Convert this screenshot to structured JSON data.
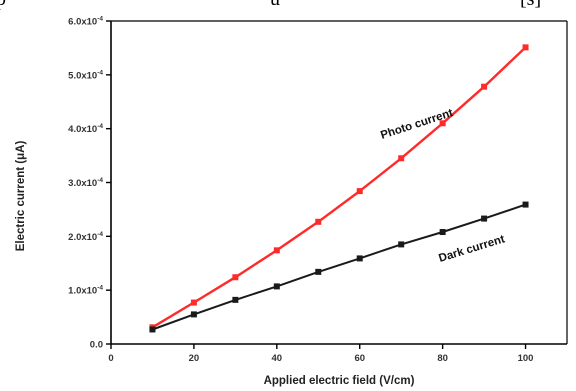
{
  "caption_fragment": {
    "left_text": "p",
    "middle_text": "u",
    "right_text": "[s]"
  },
  "chart_data": {
    "type": "line",
    "title": "",
    "xlabel": "Applied electric field (V/cm)",
    "ylabel": "Electric current (μA)",
    "xlim": [
      0,
      110
    ],
    "ylim": [
      0,
      0.0006
    ],
    "x_ticks": [
      0,
      20,
      40,
      60,
      80,
      100
    ],
    "x_tick_labels": [
      "0",
      "20",
      "40",
      "60",
      "80",
      "100"
    ],
    "y_ticks": [
      0,
      0.0001,
      0.0002,
      0.0003,
      0.0004,
      0.0005,
      0.0006
    ],
    "y_tick_labels": [
      {
        "mantissa": "0.0",
        "exp": ""
      },
      {
        "mantissa": "1.0x10",
        "exp": "-4"
      },
      {
        "mantissa": "2.0x10",
        "exp": "-4"
      },
      {
        "mantissa": "3.0x10",
        "exp": "-4"
      },
      {
        "mantissa": "4.0x10",
        "exp": "-4"
      },
      {
        "mantissa": "5.0x10",
        "exp": "-4"
      },
      {
        "mantissa": "6.0x10",
        "exp": "-4"
      }
    ],
    "grid": false,
    "legend": "none (inline labels)",
    "series": [
      {
        "name": "Photo current",
        "color": "#ff2a2a",
        "x": [
          10,
          20,
          30,
          40,
          50,
          60,
          70,
          80,
          90,
          100
        ],
        "y": [
          3.1e-05,
          7.7e-05,
          0.000124,
          0.000174,
          0.000227,
          0.000284,
          0.000345,
          0.00041,
          0.000478,
          0.000551
        ]
      },
      {
        "name": "Dark current",
        "color": "#1a1a1a",
        "x": [
          10,
          20,
          30,
          40,
          50,
          60,
          70,
          80,
          90,
          100
        ],
        "y": [
          2.7e-05,
          5.5e-05,
          8.2e-05,
          0.000107,
          0.000134,
          0.000159,
          0.000185,
          0.000208,
          0.000233,
          0.000259
        ]
      }
    ]
  }
}
